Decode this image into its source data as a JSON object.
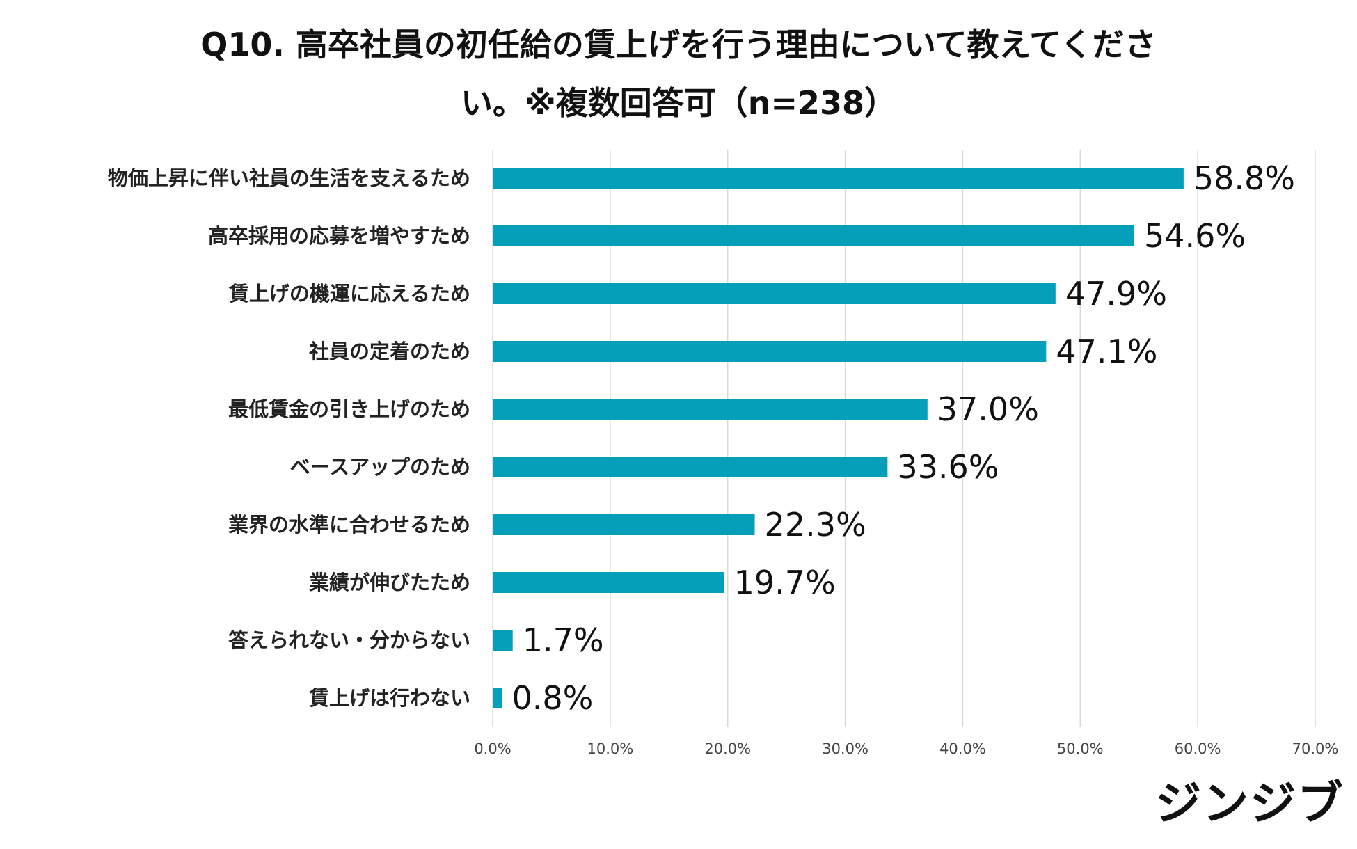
{
  "chart_data": {
    "type": "bar",
    "orientation": "horizontal",
    "title_lines": [
      "Q10. 高卒社員の初任給の賃上げを行う理由について教えてくださ",
      "い。※複数回答可（n=238）"
    ],
    "categories": [
      "物価上昇に伴い社員の生活を支えるため",
      "高卒採用の応募を増やすため",
      "賃上げの機運に応えるため",
      "社員の定着のため",
      "最低賃金の引き上げのため",
      "ベースアップのため",
      "業界の水準に合わせるため",
      "業績が伸びたため",
      "答えられない・分からない",
      "賃上げは行わない"
    ],
    "values": [
      58.8,
      54.6,
      47.9,
      47.1,
      37.0,
      33.6,
      22.3,
      19.7,
      1.7,
      0.8
    ],
    "value_labels": [
      "58.8%",
      "54.6%",
      "47.9%",
      "47.1%",
      "37.0%",
      "33.6%",
      "22.3%",
      "19.7%",
      "1.7%",
      "0.8%"
    ],
    "x_ticks": [
      0,
      10,
      20,
      30,
      40,
      50,
      60,
      70
    ],
    "x_tick_labels": [
      "0.0%",
      "10.0%",
      "20.0%",
      "30.0%",
      "40.0%",
      "50.0%",
      "60.0%",
      "70.0%"
    ],
    "xlim": [
      0,
      70
    ],
    "grid": true,
    "bar_color": "#069fba",
    "grid_color": "#d9d9d9"
  },
  "brand": {
    "logo_text": "ジンジブ"
  }
}
